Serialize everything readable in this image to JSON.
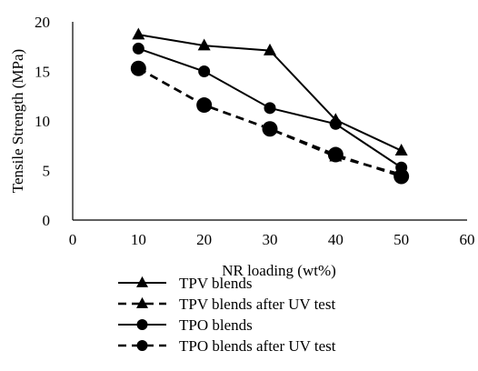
{
  "chart_data": {
    "type": "line",
    "title": "",
    "xlabel": "NR loading (wt%)",
    "ylabel": "Tensile Strength (MPa)",
    "xlim": [
      0,
      60
    ],
    "ylim": [
      0,
      20
    ],
    "xticks": [
      0,
      10,
      20,
      30,
      40,
      50,
      60
    ],
    "yticks": [
      0,
      5,
      10,
      15,
      20
    ],
    "x": [
      10,
      20,
      30,
      40,
      50
    ],
    "grid": false,
    "legend_position": "bottom",
    "series": [
      {
        "name": "TPV blends",
        "values": [
          18.7,
          17.6,
          17.1,
          10.1,
          7.0
        ],
        "marker": "triangle",
        "line": "solid",
        "color": "#000000"
      },
      {
        "name": "TPV blends after UV test",
        "values": [
          15.3,
          11.6,
          9.2,
          6.4,
          4.6
        ],
        "marker": "triangle",
        "line": "dashed",
        "color": "#000000"
      },
      {
        "name": "TPO blends",
        "values": [
          17.3,
          15.0,
          11.3,
          9.7,
          5.3
        ],
        "marker": "circle",
        "line": "solid",
        "color": "#000000"
      },
      {
        "name": "TPO blends after UV test",
        "values": [
          15.3,
          11.6,
          9.2,
          6.6,
          4.4
        ],
        "marker": "circle",
        "line": "dashed",
        "color": "#000000"
      }
    ]
  }
}
